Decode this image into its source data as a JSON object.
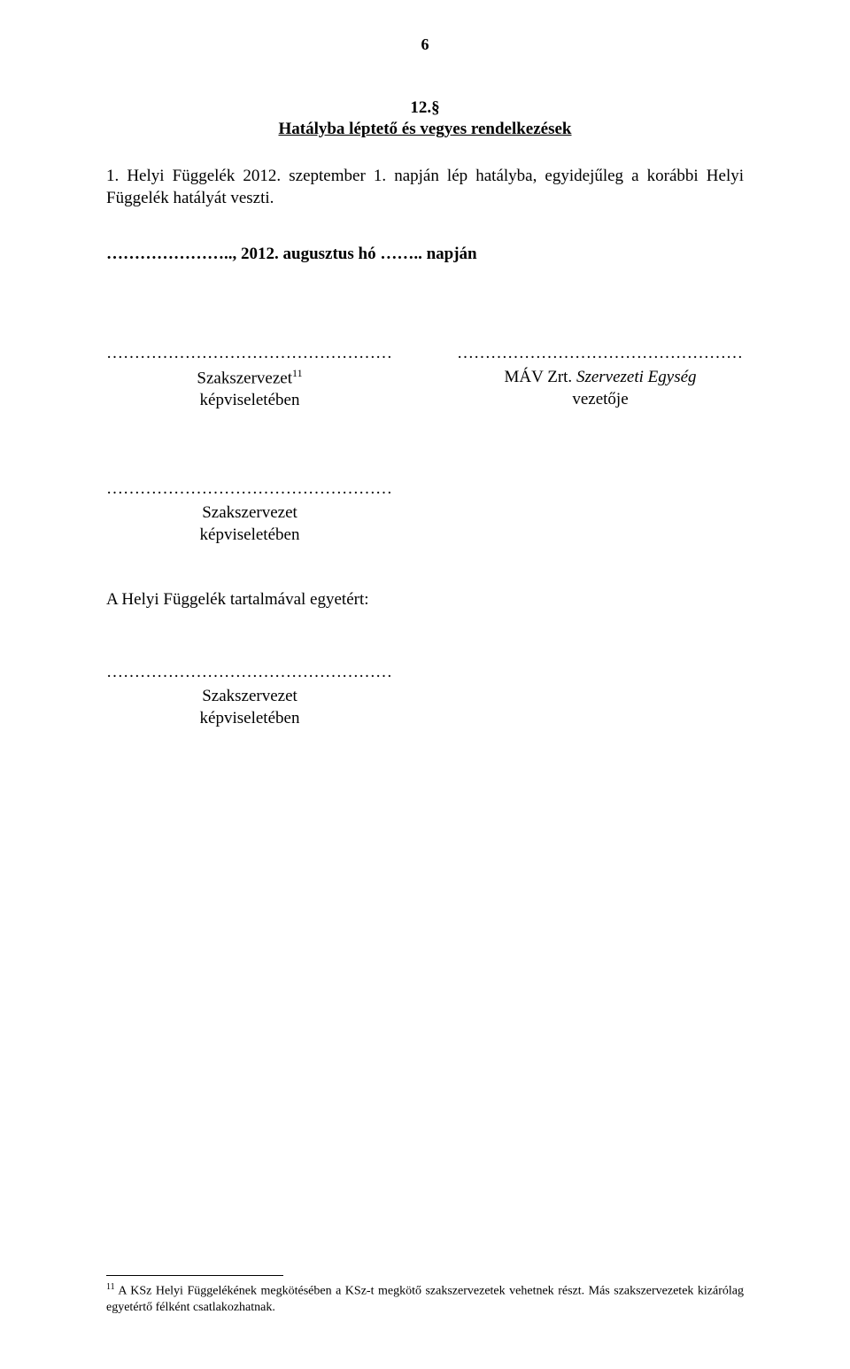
{
  "page_number": "6",
  "section": {
    "number": "12.§",
    "title": "Hatályba léptető és vegyes rendelkezések"
  },
  "body_paragraph": "1. Helyi Függelék 2012. szeptember 1. napján lép hatályba, egyidejűleg a korábbi Helyi Függelék hatályát veszti.",
  "date_line": "………………….., 2012. augusztus hó …….. napján",
  "dotted_fill": "……………………………………………",
  "signatures": {
    "left": {
      "line1_prefix": "Szakszervezet",
      "line1_sup": "11",
      "line2": "képviseletében"
    },
    "right": {
      "line1_prefix": "MÁV Zrt. ",
      "line1_italic": "Szervezeti Egység",
      "line2": "vezetője"
    }
  },
  "single_sig": {
    "line1": "Szakszervezet",
    "line2": "képviseletében"
  },
  "agreement_line": "A Helyi Függelék tartalmával egyetért:",
  "single_sig2": {
    "line1": "Szakszervezet",
    "line2": "képviseletében"
  },
  "footnote": {
    "num": "11",
    "text": " A KSz Helyi Függelékének megkötésében a KSz-t megkötő szakszervezetek vehetnek részt. Más szakszervezetek kizárólag egyetértő félként csatlakozhatnak."
  }
}
